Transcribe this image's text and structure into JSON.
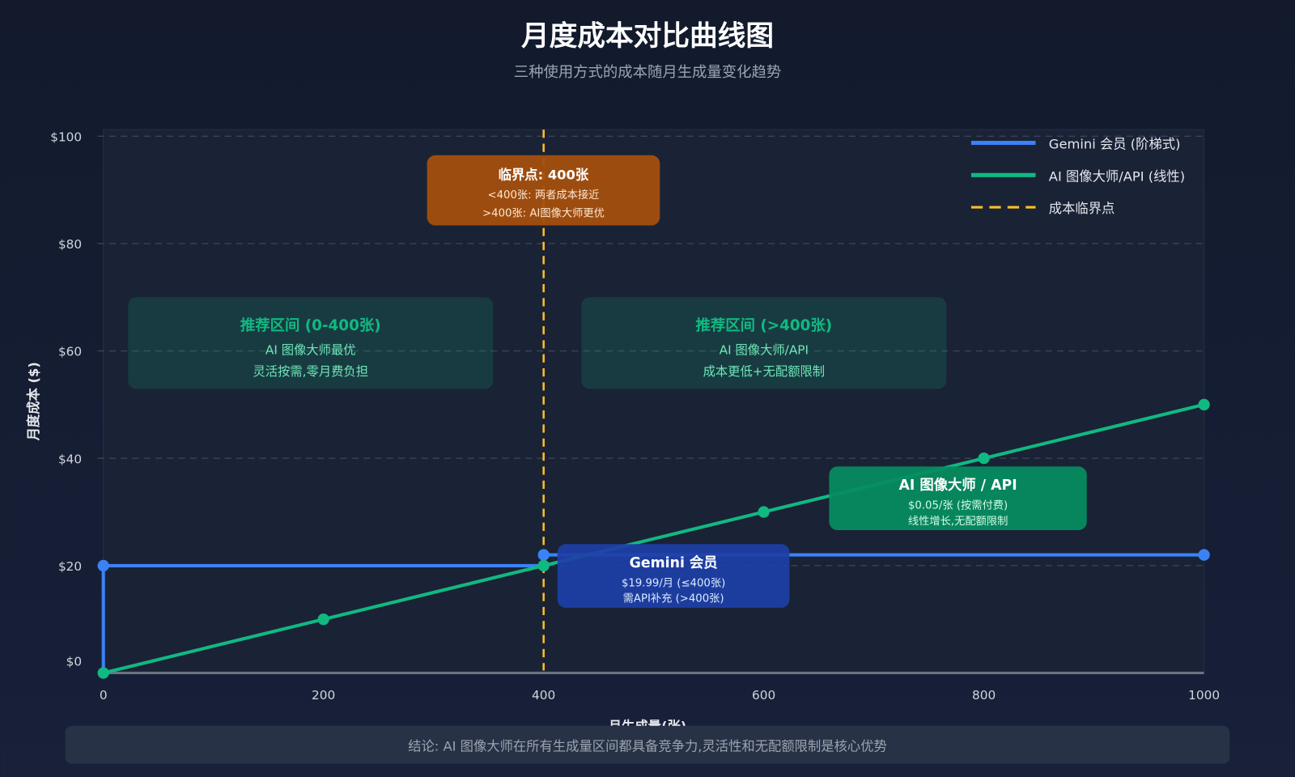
{
  "chart_data": {
    "type": "line",
    "title": "月度成本对比曲线图",
    "subtitle": "三种使用方式的成本随月生成量变化趋势",
    "xlabel": "月生成量(张)",
    "ylabel": "月度成本 ($)",
    "xlim": [
      0,
      1000
    ],
    "ylim": [
      0,
      100
    ],
    "x_ticks": [
      0,
      200,
      400,
      600,
      800,
      1000
    ],
    "y_ticks": [
      0,
      20,
      40,
      60,
      80,
      100
    ],
    "y_tick_labels": [
      "$0",
      "$20",
      "$40",
      "$60",
      "$80",
      "$100"
    ],
    "grid": "horizontal dashed",
    "legend_position": "top-right",
    "series": [
      {
        "name": "Gemini 会员 (阶梯式)",
        "color": "#3b82f6",
        "style": "step",
        "points": [
          [
            0,
            0
          ],
          [
            0,
            19.99
          ],
          [
            400,
            19.99
          ],
          [
            400,
            22
          ],
          [
            1000,
            22
          ]
        ],
        "markers": [
          [
            0,
            19.99
          ],
          [
            400,
            19.99
          ],
          [
            400,
            22
          ],
          [
            1000,
            22
          ]
        ]
      },
      {
        "name": "AI 图像大师/API (线性)",
        "color": "#10b981",
        "style": "line",
        "points": [
          [
            0,
            0
          ],
          [
            200,
            10
          ],
          [
            400,
            20
          ],
          [
            600,
            30
          ],
          [
            800,
            40
          ],
          [
            1000,
            50
          ]
        ],
        "markers": [
          [
            0,
            0
          ],
          [
            200,
            10
          ],
          [
            400,
            20
          ],
          [
            600,
            30
          ],
          [
            800,
            40
          ],
          [
            1000,
            50
          ]
        ]
      }
    ],
    "threshold": {
      "name": "成本临界点",
      "x": 400,
      "color": "#fbbf24"
    },
    "annotations": {
      "threshold_box": {
        "title": "临界点: 400张",
        "line1": "<400张: 两者成本接近",
        "line2": ">400张: AI图像大师更优",
        "color": "#a44f0e"
      },
      "zone_low": {
        "title": "推荐区间 (0-400张)",
        "line1": "AI 图像大师最优",
        "line2": "灵活按需,零月费负担"
      },
      "zone_high": {
        "title": "推荐区间 (>400张)",
        "line1": "AI 图像大师/API",
        "line2": "成本更低+无配额限制"
      },
      "ai_box": {
        "title": "AI 图像大师 / API",
        "line1": "$0.05/张 (按需付费)",
        "line2": "线性增长,无配额限制",
        "color": "#068c60"
      },
      "gemini_box": {
        "title": "Gemini 会员",
        "line1": "$19.99/月 (≤400张)",
        "line2": "需API补充 (>400张)",
        "color": "#1e3fa6"
      }
    },
    "conclusion": "结论: AI 图像大师在所有生成量区间都具备竞争力,灵活性和无配额限制是核心优势"
  }
}
